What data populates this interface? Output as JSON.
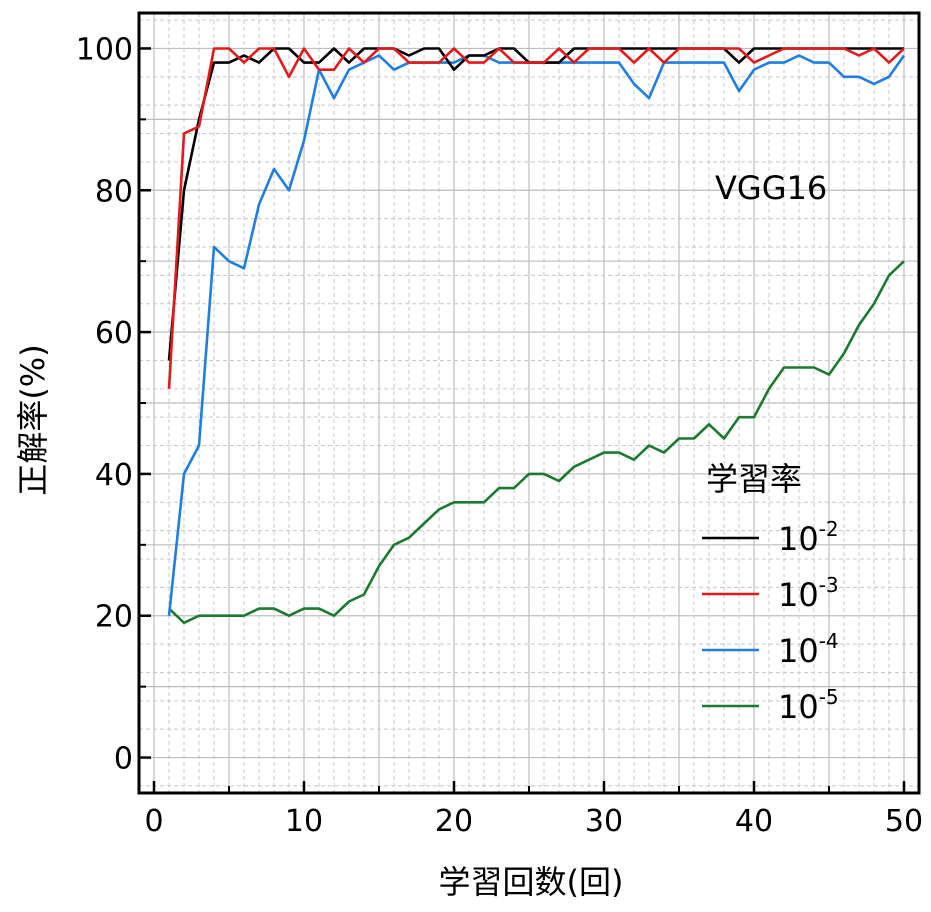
{
  "chart_data": {
    "type": "line",
    "xlabel": "学習回数(回)",
    "ylabel": "正解率(%)",
    "annotation": "VGG16",
    "xlim": [
      -1,
      51
    ],
    "ylim": [
      -5,
      105
    ],
    "xticks": [
      0,
      10,
      20,
      30,
      40,
      50
    ],
    "yticks": [
      0,
      20,
      40,
      60,
      80,
      100
    ],
    "grid": true,
    "legend_title": "学習率",
    "legend_position": "lower-right",
    "x": [
      1,
      2,
      3,
      4,
      5,
      6,
      7,
      8,
      9,
      10,
      11,
      12,
      13,
      14,
      15,
      16,
      17,
      18,
      19,
      20,
      21,
      22,
      23,
      24,
      25,
      26,
      27,
      28,
      29,
      30,
      31,
      32,
      33,
      34,
      35,
      36,
      37,
      38,
      39,
      40,
      41,
      42,
      43,
      44,
      45,
      46,
      47,
      48,
      49,
      50
    ],
    "series": [
      {
        "base": "10",
        "exp": "-2",
        "color": "#000000",
        "values": [
          56,
          80,
          90,
          98,
          98,
          99,
          98,
          100,
          100,
          98,
          98,
          100,
          98,
          100,
          100,
          100,
          99,
          100,
          100,
          97,
          99,
          99,
          100,
          100,
          98,
          98,
          98,
          100,
          100,
          100,
          100,
          100,
          100,
          100,
          100,
          100,
          100,
          100,
          98,
          100,
          100,
          100,
          100,
          100,
          100,
          100,
          100,
          100,
          100,
          100
        ]
      },
      {
        "base": "10",
        "exp": "-3",
        "color": "#e31a1c",
        "values": [
          52,
          88,
          89,
          100,
          100,
          98,
          100,
          100,
          96,
          100,
          97,
          97,
          100,
          98,
          100,
          100,
          98,
          98,
          98,
          100,
          98,
          98,
          100,
          98,
          98,
          98,
          100,
          98,
          100,
          100,
          100,
          98,
          100,
          98,
          100,
          100,
          100,
          100,
          100,
          98,
          99,
          100,
          100,
          100,
          100,
          100,
          99,
          100,
          98,
          100
        ]
      },
      {
        "base": "10",
        "exp": "-4",
        "color": "#1f7ee0",
        "values": [
          20,
          40,
          44,
          72,
          70,
          69,
          78,
          83,
          80,
          87,
          97,
          93,
          97,
          98,
          99,
          97,
          98,
          98,
          98,
          98,
          99,
          99,
          98,
          98,
          98,
          98,
          98,
          98,
          98,
          98,
          98,
          95,
          93,
          98,
          98,
          98,
          98,
          98,
          94,
          97,
          98,
          98,
          99,
          98,
          98,
          96,
          96,
          95,
          96,
          99
        ]
      },
      {
        "base": "10",
        "exp": "-5",
        "color": "#1b7a30",
        "values": [
          21,
          19,
          20,
          20,
          20,
          20,
          21,
          21,
          20,
          21,
          21,
          20,
          22,
          23,
          27,
          30,
          31,
          33,
          35,
          36,
          36,
          36,
          38,
          38,
          40,
          40,
          39,
          41,
          42,
          43,
          43,
          42,
          44,
          43,
          45,
          45,
          47,
          45,
          48,
          48,
          52,
          55,
          55,
          55,
          54,
          57,
          61,
          64,
          68,
          70
        ]
      }
    ]
  }
}
